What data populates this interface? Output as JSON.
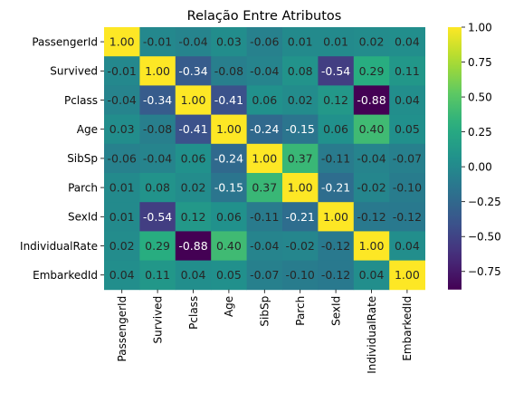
{
  "chart_data": {
    "type": "heatmap",
    "title": "Relação Entre Atributos",
    "xlabel": "",
    "ylabel": "",
    "rows": [
      "PassengerId",
      "Survived",
      "Pclass",
      "Age",
      "SibSp",
      "Parch",
      "SexId",
      "IndividualRate",
      "EmbarkedId"
    ],
    "columns": [
      "PassengerId",
      "Survived",
      "Pclass",
      "Age",
      "SibSp",
      "Parch",
      "SexId",
      "IndividualRate",
      "EmbarkedId"
    ],
    "values": [
      [
        1.0,
        -0.01,
        -0.04,
        0.03,
        -0.06,
        0.01,
        0.01,
        0.02,
        0.04
      ],
      [
        -0.01,
        1.0,
        -0.34,
        -0.08,
        -0.04,
        0.08,
        -0.54,
        0.29,
        0.11
      ],
      [
        -0.04,
        -0.34,
        1.0,
        -0.41,
        0.06,
        0.02,
        0.12,
        -0.88,
        0.04
      ],
      [
        0.03,
        -0.08,
        -0.41,
        1.0,
        -0.24,
        -0.15,
        0.06,
        0.4,
        0.05
      ],
      [
        -0.06,
        -0.04,
        0.06,
        -0.24,
        1.0,
        0.37,
        -0.11,
        -0.04,
        -0.07
      ],
      [
        0.01,
        0.08,
        0.02,
        -0.15,
        0.37,
        1.0,
        -0.21,
        -0.02,
        -0.1
      ],
      [
        0.01,
        -0.54,
        0.12,
        0.06,
        -0.11,
        -0.21,
        1.0,
        -0.12,
        -0.12
      ],
      [
        0.02,
        0.29,
        -0.88,
        0.4,
        -0.04,
        -0.02,
        -0.12,
        1.0,
        0.04
      ],
      [
        0.04,
        0.11,
        0.04,
        0.05,
        -0.07,
        -0.1,
        -0.12,
        0.04,
        1.0
      ]
    ],
    "labels": [
      [
        "1.00",
        "-0.01",
        "-0.04",
        "0.03",
        "-0.06",
        "0.01",
        "0.01",
        "0.02",
        "0.04"
      ],
      [
        "-0.01",
        "1.00",
        "-0.34",
        "-0.08",
        "-0.04",
        "0.08",
        "-0.54",
        "0.29",
        "0.11"
      ],
      [
        "-0.04",
        "-0.34",
        "1.00",
        "-0.41",
        "0.06",
        "0.02",
        "0.12",
        "-0.88",
        "0.04"
      ],
      [
        "0.03",
        "-0.08",
        "-0.41",
        "1.00",
        "-0.24",
        "-0.15",
        "0.06",
        "0.40",
        "0.05"
      ],
      [
        "-0.06",
        "-0.04",
        "0.06",
        "-0.24",
        "1.00",
        "0.37",
        "-0.11",
        "-0.04",
        "-0.07"
      ],
      [
        "0.01",
        "0.08",
        "0.02",
        "-0.15",
        "0.37",
        "1.00",
        "-0.21",
        "-0.02",
        "-0.10"
      ],
      [
        "0.01",
        "-0.54",
        "0.12",
        "0.06",
        "-0.11",
        "-0.21",
        "1.00",
        "-0.12",
        "-0.12"
      ],
      [
        "0.02",
        "0.29",
        "-0.88",
        "0.40",
        "-0.04",
        "-0.02",
        "-0.12",
        "1.00",
        "0.04"
      ],
      [
        "0.04",
        "0.11",
        "0.04",
        "0.05",
        "-0.07",
        "-0.10",
        "-0.12",
        "0.04",
        "1.00"
      ]
    ],
    "colormap": "viridis",
    "vmin": -0.88,
    "vmax": 1.0,
    "colorbar": {
      "ticks": [
        -0.75,
        -0.5,
        -0.25,
        0.0,
        0.25,
        0.5,
        0.75,
        1.0
      ],
      "tick_labels": [
        "−0.75",
        "−0.50",
        "−0.25",
        "0.00",
        "0.25",
        "0.50",
        "0.75",
        "1.00"
      ],
      "placement": "right"
    },
    "grid": false,
    "legend": "none"
  }
}
